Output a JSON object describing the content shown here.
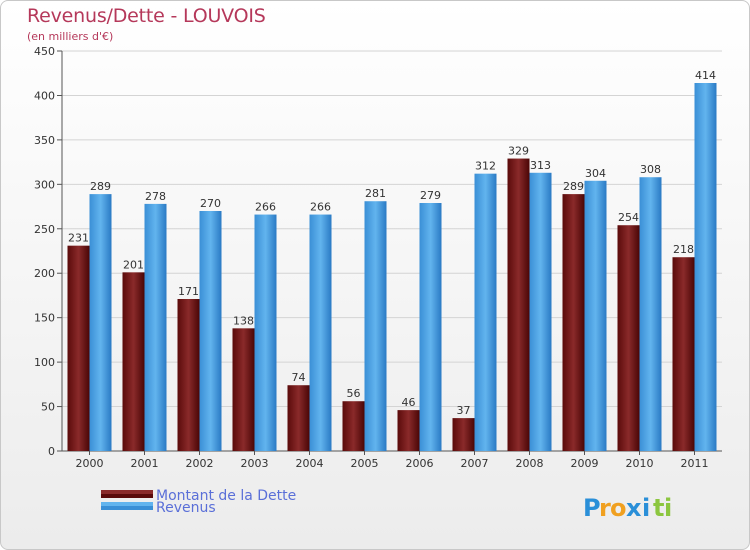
{
  "chart_data": {
    "type": "bar",
    "title": "Revenus/Dette - LOUVOIS",
    "subtitle": "(en milliers d'€)",
    "categories": [
      "2000",
      "2001",
      "2002",
      "2003",
      "2004",
      "2005",
      "2006",
      "2007",
      "2008",
      "2009",
      "2010",
      "2011"
    ],
    "series": [
      {
        "name": "Montant de la Dette",
        "color": "#7a1a1a",
        "values": [
          231,
          201,
          171,
          138,
          74,
          56,
          46,
          37,
          329,
          289,
          254,
          218
        ]
      },
      {
        "name": "Revenus",
        "color": "#4da2e3",
        "values": [
          289,
          278,
          270,
          266,
          266,
          281,
          279,
          312,
          313,
          304,
          308,
          414
        ]
      }
    ],
    "ylim": [
      0,
      450
    ],
    "yticks": [
      0,
      50,
      100,
      150,
      200,
      250,
      300,
      350,
      400,
      450
    ],
    "grid": true,
    "legend_position": "bottom-left"
  },
  "brand": {
    "letters": [
      "P",
      "r",
      "o",
      "x",
      "i",
      "t",
      "i"
    ],
    "colors": [
      "#2a8fd8",
      "#f0a020",
      "#f0a020",
      "#2a8fd8",
      "#2a8fd8",
      "#8cc63f",
      "#8cc63f"
    ]
  }
}
